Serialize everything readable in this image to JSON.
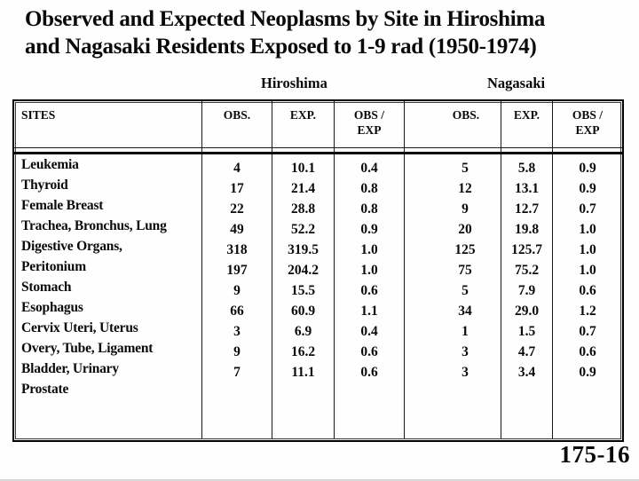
{
  "slide": {
    "title_line1": "Observed and Expected Neoplasms by Site in Hiroshima",
    "title_line2": "and Nagasaki Residents Exposed to 1-9 rad (1950-1974)",
    "slide_number": "175-16"
  },
  "colors": {
    "text": "#0a0a0a",
    "background": "#fefefe",
    "border": "#000000"
  },
  "table": {
    "group_headers": {
      "hiroshima": "Hiroshima",
      "nagasaki": "Nagasaki"
    },
    "column_headers": [
      "SITES",
      "OBS.",
      "EXP.",
      "OBS /\nEXP",
      "OBS.",
      "EXP.",
      "OBS /\nEXP"
    ],
    "rows": [
      {
        "site": "Leukemia",
        "values": [
          "4",
          "10.1",
          "0.4",
          "5",
          "5.8",
          "0.9"
        ]
      },
      {
        "site": "Thyroid",
        "values": [
          "17",
          "21.4",
          "0.8",
          "12",
          "13.1",
          "0.9"
        ]
      },
      {
        "site": "Female Breast",
        "values": [
          "22",
          "28.8",
          "0.8",
          "9",
          "12.7",
          "0.7"
        ]
      },
      {
        "site": "Trachea, Bronchus, Lung",
        "values": [
          "49",
          "52.2",
          "0.9",
          "20",
          "19.8",
          "1.0"
        ]
      },
      {
        "site": "Digestive Organs,",
        "values": [
          "318",
          "319.5",
          "1.0",
          "125",
          "125.7",
          "1.0"
        ]
      },
      {
        "site": "Peritonium",
        "values": [
          "197",
          "204.2",
          "1.0",
          "75",
          "75.2",
          "1.0"
        ]
      },
      {
        "site": "Stomach",
        "values": [
          "9",
          "15.5",
          "0.6",
          "5",
          "7.9",
          "0.6"
        ]
      },
      {
        "site": "Esophagus",
        "values": [
          "66",
          "60.9",
          "1.1",
          "34",
          "29.0",
          "1.2"
        ]
      },
      {
        "site": "Cervix Uteri, Uterus",
        "values": [
          "3",
          "6.9",
          "0.4",
          "1",
          "1.5",
          "0.7"
        ]
      },
      {
        "site": "Overy, Tube, Ligament",
        "values": [
          "9",
          "16.2",
          "0.6",
          "3",
          "4.7",
          "0.6"
        ]
      },
      {
        "site": "Bladder, Urinary",
        "values": [
          "7",
          "11.1",
          "0.6",
          "3",
          "3.4",
          "0.9"
        ]
      },
      {
        "site": "Prostate",
        "values": [
          "",
          "",
          "",
          "",
          "",
          ""
        ]
      }
    ]
  }
}
